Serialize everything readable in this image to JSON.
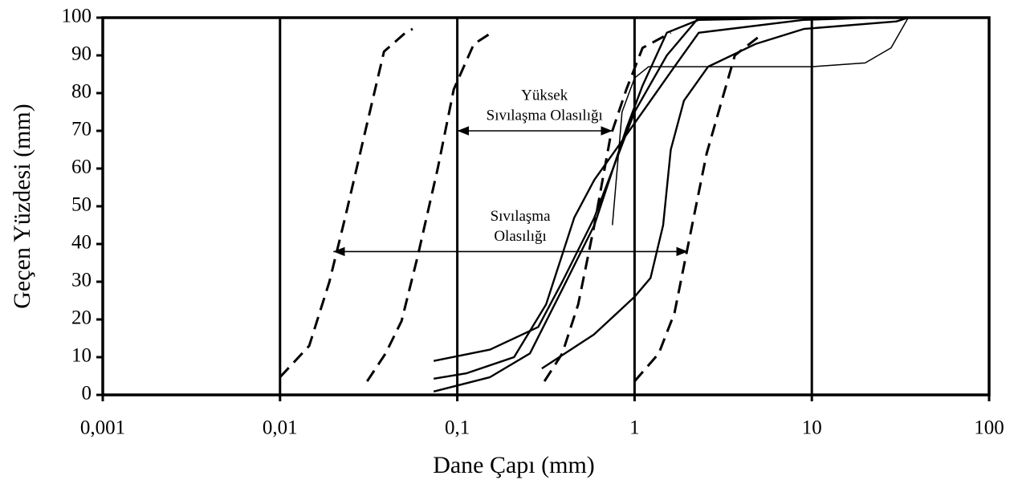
{
  "chart_data": {
    "type": "line",
    "x_label": "Dane Çapı (mm)",
    "y_label": "Geçen Yüzdesi (mm)",
    "xscale": "log",
    "xlim": [
      0.001,
      100
    ],
    "ylim": [
      0,
      100
    ],
    "xticks": [
      {
        "value": 0.001,
        "label": "0,001"
      },
      {
        "value": 0.01,
        "label": "0,01"
      },
      {
        "value": 0.1,
        "label": "0,1"
      },
      1,
      10,
      100
    ],
    "yticks": [
      0,
      10,
      20,
      30,
      40,
      50,
      60,
      70,
      80,
      90,
      100
    ],
    "grid": "x",
    "series": [
      {
        "style": "dashed",
        "color": "#000000",
        "x": [
          0.01,
          0.0146,
          0.019,
          0.0233,
          0.0303,
          0.0386,
          0.051,
          0.056
        ],
        "values": [
          4.7,
          13,
          30,
          47,
          70,
          91,
          96,
          97
        ]
      },
      {
        "style": "dashed",
        "color": "#000000",
        "x": [
          0.031,
          0.0394,
          0.0485,
          0.0597,
          0.0775,
          0.0955,
          0.124,
          0.156
        ],
        "values": [
          3.6,
          11,
          19.6,
          36.6,
          60,
          81,
          93,
          96
        ]
      },
      {
        "style": "dashed",
        "color": "#000000",
        "x": [
          0.31,
          0.391,
          0.481,
          0.593,
          0.731,
          0.899,
          1.11,
          1.6
        ],
        "values": [
          3.6,
          11,
          24,
          45,
          68.5,
          81,
          92,
          96
        ]
      },
      {
        "style": "dashed",
        "color": "#000000",
        "x": [
          1,
          1.37,
          1.68,
          2.07,
          2.55,
          3.15,
          3.68,
          5.04
        ],
        "values": [
          3.6,
          11,
          21.7,
          43,
          64,
          79,
          90,
          95
        ]
      },
      {
        "style": "solid",
        "color": "#000000",
        "x": [
          0.0736,
          0.153,
          0.286,
          0.391,
          0.593,
          1,
          1.52,
          2.3
        ],
        "values": [
          9,
          12,
          18,
          30,
          47,
          75,
          90,
          100
        ]
      },
      {
        "style": "solid",
        "color": "#000000",
        "x": [
          0.0736,
          0.112,
          0.209,
          0.317,
          0.457,
          0.593,
          1,
          1.68,
          2.3,
          8.93,
          22.9
        ],
        "values": [
          4.3,
          5.7,
          10,
          24,
          47,
          57,
          72,
          87,
          96,
          99.4,
          100
        ]
      },
      {
        "style": "solid",
        "color": "#000000",
        "x": [
          0.0736,
          0.153,
          0.257,
          0.391,
          0.593,
          0.899,
          1.11,
          1.52,
          2.3,
          10
        ],
        "values": [
          0.9,
          4.7,
          11,
          28,
          45,
          70.6,
          82,
          96,
          99.4,
          100
        ]
      },
      {
        "style": "solid",
        "color": "#000000",
        "x": [
          0.3,
          0.59,
          1,
          1.23,
          1.45,
          1.6,
          1.9,
          2.6,
          4.8,
          9,
          30,
          35
        ],
        "values": [
          7,
          16,
          26,
          31,
          45,
          65,
          78,
          87,
          93,
          97,
          99,
          100
        ]
      },
      {
        "style": "thin",
        "color": "#000000",
        "x": [
          0.75,
          0.85,
          1,
          1.2,
          2,
          10,
          20,
          28,
          35
        ],
        "values": [
          45,
          75,
          84,
          87,
          87,
          87,
          88,
          92,
          100
        ]
      }
    ],
    "annotations": [
      {
        "text": [
          "Yüksek",
          "Sıvılaşma Olasılığı"
        ],
        "x": [
          0.1,
          0.75
        ],
        "y": 70
      },
      {
        "text": [
          "Sıvılaşma",
          "Olasılığı"
        ],
        "x": [
          0.02,
          2
        ],
        "y": 38
      }
    ]
  }
}
